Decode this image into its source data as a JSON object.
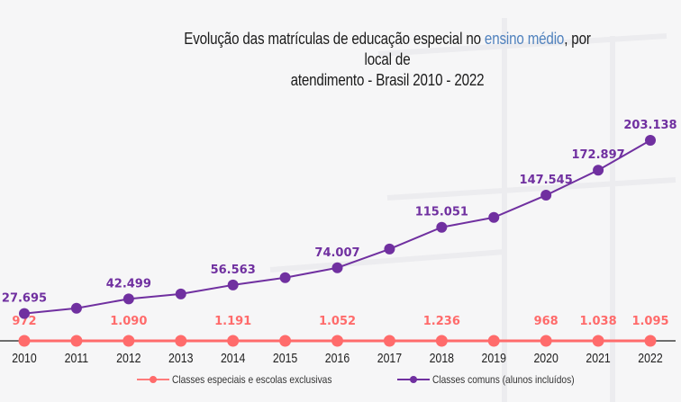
{
  "title": {
    "part1": "Evolução das matrículas de educação especial no ",
    "highlight": "ensino médio",
    "part2": ", por local de",
    "line2": "atendimento  - Brasil 2010 - 2022"
  },
  "colors": {
    "series_especiais": "#ff6b6b",
    "series_comuns": "#7030a0",
    "title_highlight": "#4f81bd",
    "axis": "#404040"
  },
  "legend": [
    {
      "label": "Classes especiais e escolas exclusivas"
    },
    {
      "label": "Classes comuns (alunos incluídos)"
    }
  ],
  "chart_data": {
    "type": "line",
    "title": "Evolução das matrículas de educação especial no ensino médio, por local de atendimento - Brasil 2010 - 2022",
    "xlabel": "",
    "ylabel": "",
    "x": [
      "2010",
      "2011",
      "2012",
      "2013",
      "2014",
      "2015",
      "2016",
      "2017",
      "2018",
      "2019",
      "2020",
      "2021",
      "2022"
    ],
    "ylim": [
      0,
      210000
    ],
    "grid": false,
    "legend_position": "bottom",
    "series": [
      {
        "name": "Classes especiais e escolas exclusivas",
        "color": "#ff6b6b",
        "values": [
          972,
          1050,
          1090,
          1120,
          1191,
          1100,
          1052,
          1150,
          1236,
          1000,
          968,
          1038,
          1095
        ],
        "labels": [
          "972",
          "",
          "1.090",
          "",
          "1.191",
          "",
          "1.052",
          "",
          "1.236",
          "",
          "968",
          "1.038",
          "1.095"
        ]
      },
      {
        "name": "Classes comuns (alunos incluídos)",
        "color": "#7030a0",
        "values": [
          27695,
          33000,
          42499,
          47500,
          56563,
          64000,
          74007,
          93000,
          115051,
          125000,
          147545,
          172897,
          203138
        ],
        "labels": [
          "27.695",
          "",
          "42.499",
          "",
          "56.563",
          "",
          "74.007",
          "",
          "115.051",
          "",
          "147.545",
          "172.897",
          "203.138"
        ]
      }
    ]
  }
}
